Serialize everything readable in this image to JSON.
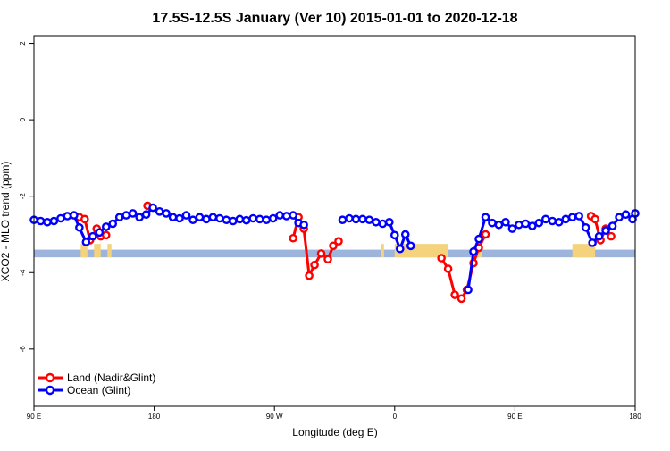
{
  "chart_data": {
    "type": "line",
    "title": "17.5S-12.5S January (Ver 10)   2015-01-01 to 2020-12-18",
    "xlabel": "Longitude (deg E)",
    "ylabel": "XCO2 - MLO trend (ppm)",
    "xlim": [
      90,
      540
    ],
    "ylim": [
      -7.5,
      2.2
    ],
    "xticks": [
      90,
      180,
      270,
      360,
      450,
      540
    ],
    "xtick_labels": [
      "90 E",
      "180",
      "90 W",
      "0",
      "90 E",
      "180"
    ],
    "yticks": [
      2,
      0,
      -2,
      -4,
      -6
    ],
    "ytick_labels": [
      "2",
      "0",
      "-2",
      "-4",
      "-6"
    ],
    "grid": false,
    "legend_position": "bottom-left",
    "band": {
      "y_low": -3.6,
      "y_high": -3.4,
      "color": "#9db4dc"
    },
    "land_bars": {
      "color": "#f5d37c",
      "segments": [
        [
          125,
          130
        ],
        [
          135,
          140
        ],
        [
          145,
          148
        ],
        [
          350,
          352
        ],
        [
          360,
          400
        ],
        [
          422,
          425
        ],
        [
          493,
          510
        ]
      ],
      "top": -3.25
    },
    "series": [
      {
        "name": "Land (Nadir&Glint)",
        "color": "#ff0000",
        "segments": [
          [
            [
              124,
              -2.55
            ],
            [
              128,
              -2.6
            ],
            [
              132,
              -3.15
            ],
            [
              137,
              -2.85
            ],
            [
              140,
              -3.05
            ],
            [
              144,
              -3.02
            ]
          ],
          [
            [
              175,
              -2.25
            ]
          ],
          [
            [
              284,
              -3.1
            ],
            [
              288,
              -2.55
            ],
            [
              292,
              -2.85
            ],
            [
              296,
              -4.08
            ],
            [
              300,
              -3.8
            ],
            [
              305,
              -3.5
            ],
            [
              310,
              -3.65
            ],
            [
              314,
              -3.3
            ],
            [
              318,
              -3.18
            ]
          ],
          [
            [
              395,
              -3.62
            ],
            [
              400,
              -3.9
            ],
            [
              405,
              -4.58
            ],
            [
              410,
              -4.68
            ],
            [
              414,
              -4.45
            ],
            [
              419,
              -3.75
            ],
            [
              423,
              -3.35
            ],
            [
              428,
              -3.0
            ]
          ],
          [
            [
              507,
              -2.52
            ],
            [
              510,
              -2.6
            ],
            [
              514,
              -3.15
            ],
            [
              518,
              -2.85
            ],
            [
              522,
              -3.05
            ]
          ]
        ]
      },
      {
        "name": "Ocean (Glint)",
        "color": "#0000ff",
        "segments": [
          [
            [
              90,
              -2.62
            ],
            [
              95,
              -2.65
            ],
            [
              100,
              -2.68
            ],
            [
              105,
              -2.65
            ],
            [
              110,
              -2.58
            ],
            [
              115,
              -2.52
            ],
            [
              120,
              -2.5
            ],
            [
              124,
              -2.82
            ],
            [
              129,
              -3.2
            ],
            [
              134,
              -3.05
            ],
            [
              139,
              -2.95
            ],
            [
              144,
              -2.8
            ],
            [
              149,
              -2.72
            ],
            [
              154,
              -2.55
            ],
            [
              159,
              -2.5
            ],
            [
              164,
              -2.45
            ],
            [
              169,
              -2.55
            ],
            [
              174,
              -2.48
            ],
            [
              179,
              -2.3
            ],
            [
              184,
              -2.4
            ],
            [
              189,
              -2.45
            ],
            [
              194,
              -2.55
            ],
            [
              199,
              -2.58
            ],
            [
              204,
              -2.5
            ],
            [
              209,
              -2.62
            ],
            [
              214,
              -2.55
            ],
            [
              219,
              -2.6
            ],
            [
              224,
              -2.55
            ],
            [
              229,
              -2.58
            ],
            [
              234,
              -2.62
            ],
            [
              239,
              -2.65
            ],
            [
              244,
              -2.6
            ],
            [
              249,
              -2.63
            ],
            [
              254,
              -2.58
            ],
            [
              259,
              -2.6
            ],
            [
              264,
              -2.62
            ],
            [
              269,
              -2.58
            ],
            [
              274,
              -2.5
            ],
            [
              279,
              -2.52
            ],
            [
              284,
              -2.5
            ],
            [
              288,
              -2.7
            ],
            [
              292,
              -2.75
            ]
          ],
          [
            [
              321,
              -2.62
            ],
            [
              326,
              -2.58
            ],
            [
              331,
              -2.6
            ],
            [
              336,
              -2.6
            ],
            [
              341,
              -2.62
            ],
            [
              346,
              -2.68
            ],
            [
              351,
              -2.72
            ],
            [
              356,
              -2.68
            ],
            [
              360,
              -3.02
            ],
            [
              364,
              -3.38
            ],
            [
              368,
              -3.0
            ],
            [
              372,
              -3.3
            ]
          ],
          [
            [
              415,
              -4.45
            ],
            [
              419,
              -3.45
            ],
            [
              423,
              -3.12
            ],
            [
              428,
              -2.55
            ],
            [
              433,
              -2.7
            ],
            [
              438,
              -2.75
            ],
            [
              443,
              -2.68
            ],
            [
              448,
              -2.85
            ],
            [
              453,
              -2.75
            ],
            [
              458,
              -2.72
            ],
            [
              463,
              -2.78
            ],
            [
              468,
              -2.7
            ],
            [
              473,
              -2.6
            ],
            [
              478,
              -2.65
            ],
            [
              483,
              -2.68
            ],
            [
              488,
              -2.6
            ],
            [
              493,
              -2.55
            ],
            [
              498,
              -2.52
            ],
            [
              503,
              -2.82
            ],
            [
              508,
              -3.22
            ],
            [
              513,
              -3.05
            ],
            [
              518,
              -2.9
            ],
            [
              523,
              -2.78
            ],
            [
              528,
              -2.55
            ],
            [
              533,
              -2.48
            ],
            [
              538,
              -2.6
            ],
            [
              540,
              -2.45
            ]
          ]
        ]
      }
    ]
  }
}
